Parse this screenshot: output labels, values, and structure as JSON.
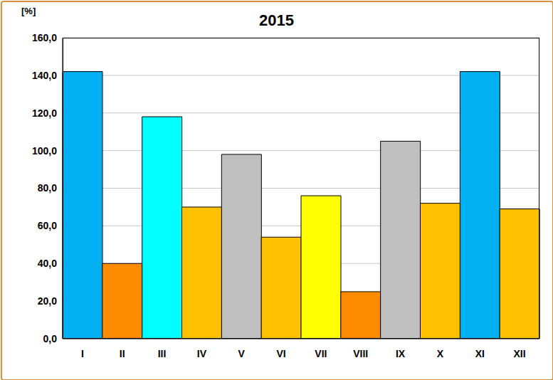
{
  "chart_data": {
    "type": "bar",
    "title": "2015",
    "y_label": "[%]",
    "categories": [
      "I",
      "II",
      "III",
      "IV",
      "V",
      "VI",
      "VII",
      "VIII",
      "IX",
      "X",
      "XI",
      "XII"
    ],
    "values": [
      142,
      40,
      118,
      70,
      98,
      54,
      76,
      25,
      105,
      72,
      142,
      69
    ],
    "colors": [
      "#00B0F0",
      "#FF8C00",
      "#00FFFF",
      "#FFC000",
      "#BFBFBF",
      "#FFC000",
      "#FFFF00",
      "#FF8C00",
      "#BFBFBF",
      "#FFC000",
      "#00B0F0",
      "#FFC000"
    ],
    "ylim": [
      0,
      160
    ],
    "yticks": [
      {
        "value": 0,
        "label": "0,0"
      },
      {
        "value": 20,
        "label": "20,0"
      },
      {
        "value": 40,
        "label": "40,0"
      },
      {
        "value": 60,
        "label": "60,0"
      },
      {
        "value": 80,
        "label": "80,0"
      },
      {
        "value": 100,
        "label": "100,0"
      },
      {
        "value": 120,
        "label": "120,0"
      },
      {
        "value": 140,
        "label": "140,0"
      },
      {
        "value": 160,
        "label": "160,0"
      }
    ],
    "grid": true
  }
}
